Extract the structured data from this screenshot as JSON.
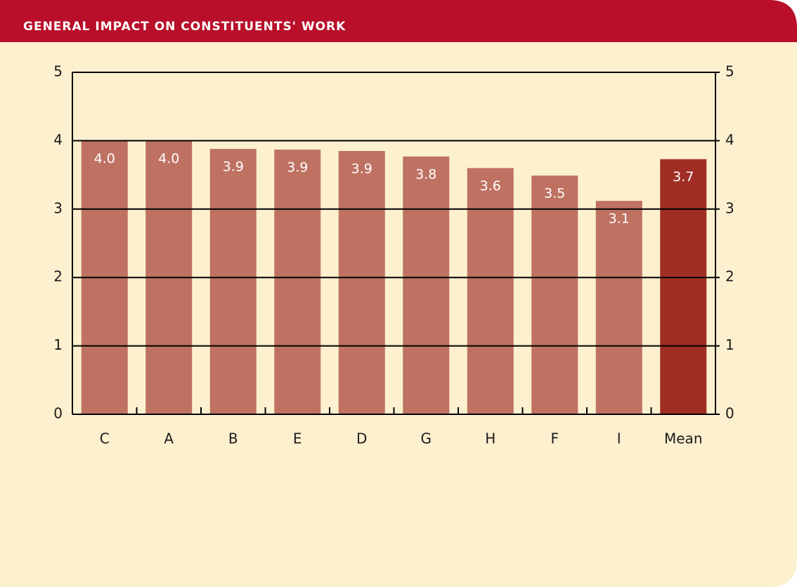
{
  "chart_data": {
    "type": "bar",
    "title": "GENERAL IMPACT ON CONSTITUENTS' WORK",
    "categories": [
      "C",
      "A",
      "B",
      "E",
      "D",
      "G",
      "H",
      "F",
      "I",
      "Mean"
    ],
    "values": [
      4.0,
      4.0,
      3.88,
      3.87,
      3.85,
      3.77,
      3.6,
      3.49,
      3.12,
      3.73
    ],
    "value_labels": [
      "4.0",
      "4.0",
      "3.9",
      "3.9",
      "3.9",
      "3.8",
      "3.6",
      "3.5",
      "3.1",
      "3.7"
    ],
    "colors": [
      "#bf7262",
      "#bf7262",
      "#bf7262",
      "#bf7262",
      "#bf7262",
      "#bf7262",
      "#bf7262",
      "#bf7262",
      "#bf7262",
      "#a02e25"
    ],
    "ylim": [
      0,
      5
    ],
    "yticks": [
      0,
      1,
      2,
      3,
      4,
      5
    ],
    "y2lim": [
      0,
      5
    ],
    "y2ticks": [
      0,
      1,
      2,
      3,
      4,
      5
    ],
    "grid": true
  }
}
